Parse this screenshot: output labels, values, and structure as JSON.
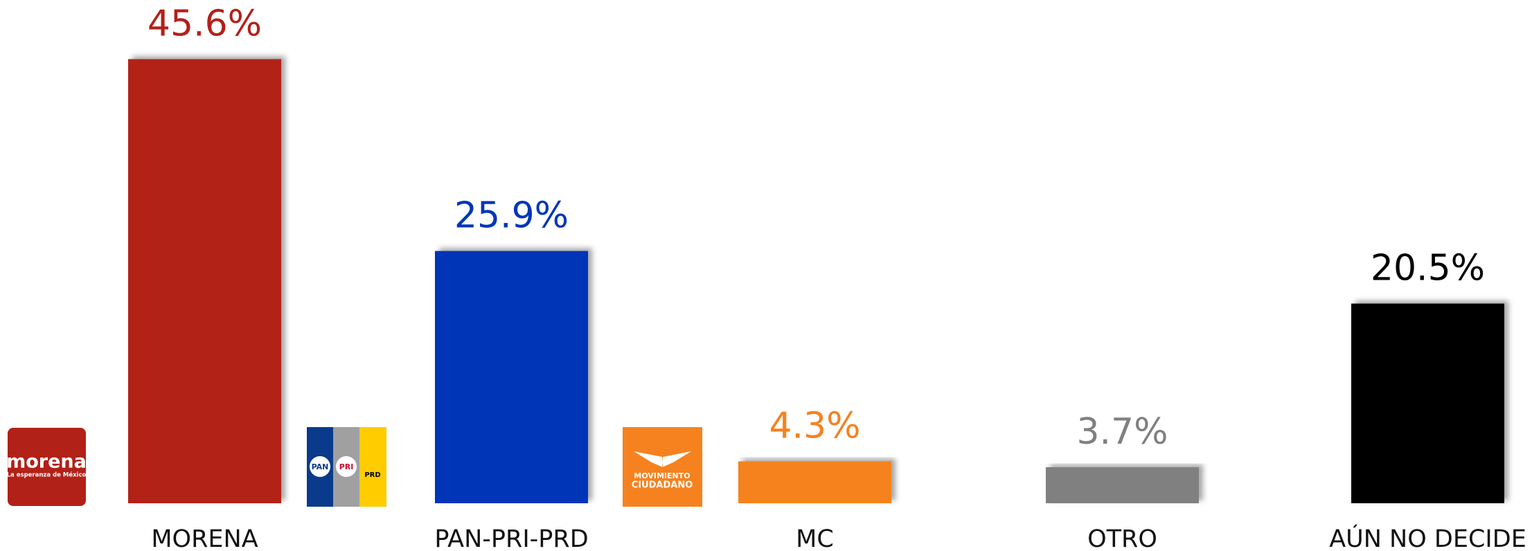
{
  "chart_data": {
    "type": "bar",
    "categories": [
      "MORENA",
      "PAN-PRI-PRD",
      "MC",
      "OTRO",
      "AÚN NO DECIDE"
    ],
    "values": [
      45.6,
      25.9,
      4.3,
      3.7,
      20.5
    ],
    "value_labels": [
      "45.6%",
      "25.9%",
      "4.3%",
      "3.7%",
      "20.5%"
    ],
    "colors": [
      "#b22118",
      "#0036b8",
      "#f5821f",
      "#808080",
      "#000000"
    ],
    "grid": false
  },
  "logos": {
    "morena": [
      "morena",
      "La esperanza de México"
    ],
    "coalition": [
      "PAN",
      "PRI",
      "PRD"
    ],
    "mc": [
      "MOVIMIENTO",
      "CIUDADANO"
    ]
  }
}
